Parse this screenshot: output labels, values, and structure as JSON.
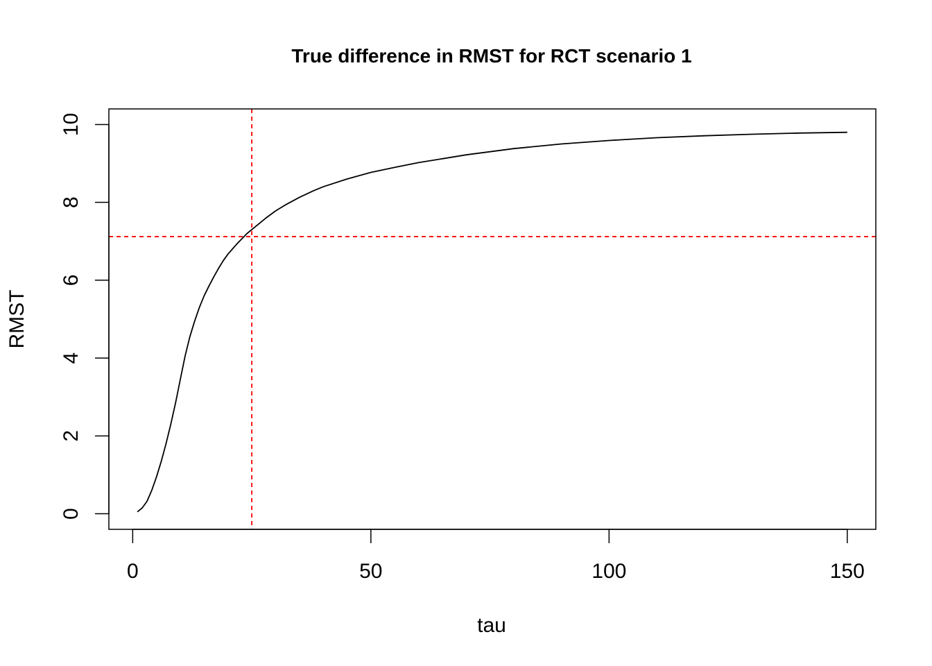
{
  "chart_data": {
    "type": "line",
    "title": "True difference in RMST for RCT scenario 1",
    "xlabel": "tau",
    "ylabel": "RMST",
    "xlim": [
      -5,
      156
    ],
    "ylim": [
      -0.4,
      10.4
    ],
    "x_ticks": [
      "0",
      "50",
      "100",
      "150"
    ],
    "y_ticks": [
      "0",
      "2",
      "4",
      "6",
      "8",
      "10"
    ],
    "grid": false,
    "series": [
      {
        "color": "#000000",
        "line_style": "solid",
        "x": [
          1,
          2,
          3,
          4,
          5,
          6,
          7,
          8,
          9,
          10,
          11,
          12,
          13,
          14,
          15,
          16,
          17,
          18,
          19,
          20,
          22,
          24,
          25,
          26,
          28,
          30,
          32,
          35,
          38,
          40,
          45,
          50,
          55,
          60,
          65,
          70,
          75,
          80,
          90,
          100,
          110,
          120,
          130,
          140,
          150
        ],
        "y": [
          0.05,
          0.15,
          0.32,
          0.6,
          0.95,
          1.35,
          1.8,
          2.3,
          2.85,
          3.45,
          4.05,
          4.55,
          4.95,
          5.3,
          5.6,
          5.85,
          6.08,
          6.3,
          6.5,
          6.67,
          6.95,
          7.2,
          7.3,
          7.4,
          7.6,
          7.78,
          7.93,
          8.13,
          8.3,
          8.4,
          8.6,
          8.77,
          8.9,
          9.02,
          9.12,
          9.22,
          9.3,
          9.38,
          9.5,
          9.59,
          9.66,
          9.71,
          9.75,
          9.78,
          9.8
        ]
      }
    ],
    "reference_lines": [
      {
        "orientation": "vertical",
        "value": 25,
        "color": "#ff0000",
        "line_style": "dashed"
      },
      {
        "orientation": "horizontal",
        "value": 7.12,
        "color": "#ff0000",
        "line_style": "dashed"
      }
    ]
  }
}
